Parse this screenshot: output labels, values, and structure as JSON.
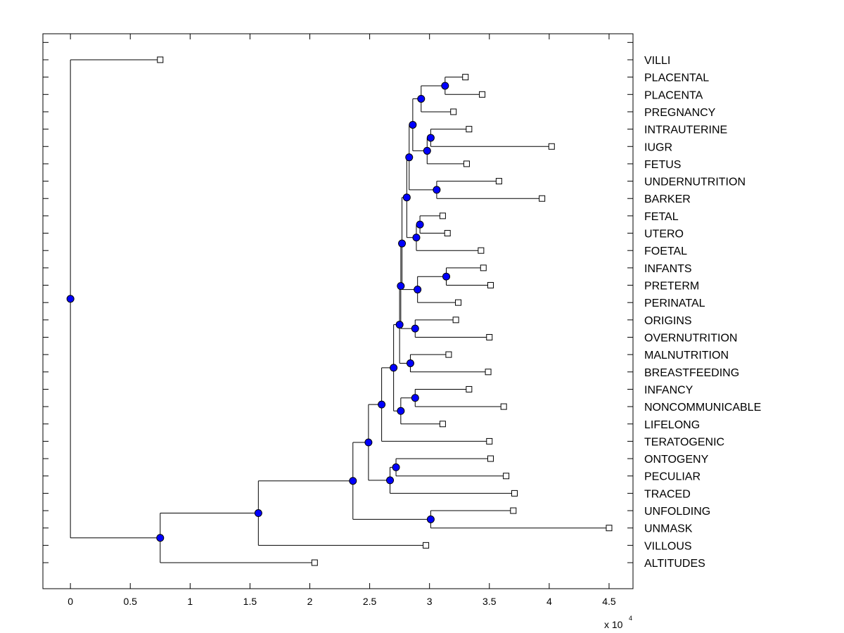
{
  "chart_data": {
    "type": "dendrogram",
    "orientation": "horizontal-tree",
    "x_axis": {
      "ticks": [
        0,
        5000,
        10000,
        15000,
        20000,
        25000,
        30000,
        35000,
        40000,
        45000
      ],
      "tick_labels": [
        "0",
        "0.5",
        "1",
        "1.5",
        "2",
        "2.5",
        "3",
        "3.5",
        "4",
        "4.5"
      ],
      "multiplier_base": "x 10",
      "multiplier_exponent": "4",
      "xlim": [
        -2300,
        47000
      ]
    },
    "y_axis": {
      "ylim": [
        -0.5,
        31.5
      ],
      "tick_count": 31
    },
    "colors": {
      "node_fill": "#0000ff",
      "leaf_fill": "#ffffff",
      "line": "#000000"
    },
    "leaves": [
      {
        "label": "VILLI",
        "x": 7500
      },
      {
        "label": "PLACENTAL",
        "x": 33000
      },
      {
        "label": "PLACENTA",
        "x": 34400
      },
      {
        "label": "PREGNANCY",
        "x": 32000
      },
      {
        "label": "INTRAUTERINE",
        "x": 33300
      },
      {
        "label": "IUGR",
        "x": 40200
      },
      {
        "label": "FETUS",
        "x": 33100
      },
      {
        "label": "UNDERNUTRITION",
        "x": 35800
      },
      {
        "label": "BARKER",
        "x": 39400
      },
      {
        "label": "FETAL",
        "x": 31100
      },
      {
        "label": "UTERO",
        "x": 31500
      },
      {
        "label": "FOETAL",
        "x": 34300
      },
      {
        "label": "INFANTS",
        "x": 34500
      },
      {
        "label": "PRETERM",
        "x": 35100
      },
      {
        "label": "PERINATAL",
        "x": 32400
      },
      {
        "label": "ORIGINS",
        "x": 32200
      },
      {
        "label": "OVERNUTRITION",
        "x": 35000
      },
      {
        "label": "MALNUTRITION",
        "x": 31600
      },
      {
        "label": "BREASTFEEDING",
        "x": 34900
      },
      {
        "label": "INFANCY",
        "x": 33300
      },
      {
        "label": "NONCOMMUNICABLE",
        "x": 36200
      },
      {
        "label": "LIFELONG",
        "x": 31100
      },
      {
        "label": "TERATOGENIC",
        "x": 35000
      },
      {
        "label": "ONTOGENY",
        "x": 35100
      },
      {
        "label": "PECULIAR",
        "x": 36400
      },
      {
        "label": "TRACED",
        "x": 37100
      },
      {
        "label": "UNFOLDING",
        "x": 37000
      },
      {
        "label": "UNMASK",
        "x": 45000
      },
      {
        "label": "VILLOUS",
        "x": 29700
      },
      {
        "label": "ALTITUDES",
        "x": 20400
      }
    ],
    "nodes": [
      {
        "id": "root",
        "x": 0,
        "children": [
          "VILLI",
          "n_alt"
        ]
      },
      {
        "id": "n_alt",
        "x": 7500,
        "children": [
          "n_vil",
          "ALTITUDES"
        ]
      },
      {
        "id": "n_vil",
        "x": 15700,
        "children": [
          "n_main",
          "VILLOUS"
        ]
      },
      {
        "id": "n_main",
        "x": 23600,
        "children": [
          "n_ter",
          "n_unf"
        ]
      },
      {
        "id": "n_unf",
        "x": 30100,
        "children": [
          "UNFOLDING",
          "UNMASK"
        ]
      },
      {
        "id": "n_ter",
        "x": 24900,
        "children": [
          "n_big",
          "n_tr"
        ]
      },
      {
        "id": "n_tr",
        "x": 26700,
        "children": [
          "n_ont",
          "TRACED"
        ]
      },
      {
        "id": "n_ont",
        "x": 27200,
        "children": [
          "ONTOGENY",
          "PECULIAR"
        ]
      },
      {
        "id": "n_big",
        "x": 26000,
        "children": [
          "n_lif",
          "TERATOGENIC"
        ]
      },
      {
        "id": "n_lif",
        "x": 27000,
        "children": [
          "n_mal",
          "n_inf2"
        ]
      },
      {
        "id": "n_inf2",
        "x": 27600,
        "children": [
          "n_inf",
          "LIFELONG"
        ]
      },
      {
        "id": "n_inf",
        "x": 28800,
        "children": [
          "INFANCY",
          "NONCOMMUNICABLE"
        ]
      },
      {
        "id": "n_mal",
        "x": 27500,
        "children": [
          "n_ori",
          "n_mb"
        ]
      },
      {
        "id": "n_mb",
        "x": 28400,
        "children": [
          "MALNUTRITION",
          "BREASTFEEDING"
        ]
      },
      {
        "id": "n_ori",
        "x": 27600,
        "children": [
          "n_pre",
          "n_ov"
        ]
      },
      {
        "id": "n_ov",
        "x": 28800,
        "children": [
          "ORIGINS",
          "OVERNUTRITION"
        ]
      },
      {
        "id": "n_pre",
        "x": 27700,
        "children": [
          "n_foe",
          "n_per"
        ]
      },
      {
        "id": "n_per",
        "x": 29000,
        "children": [
          "n_ip",
          "PERINATAL"
        ]
      },
      {
        "id": "n_ip",
        "x": 31400,
        "children": [
          "INFANTS",
          "PRETERM"
        ]
      },
      {
        "id": "n_foe",
        "x": 28100,
        "children": [
          "n_bar",
          "n_fu"
        ]
      },
      {
        "id": "n_fu",
        "x": 28900,
        "children": [
          "n_fetal",
          "FOETAL"
        ]
      },
      {
        "id": "n_fetal",
        "x": 29200,
        "children": [
          "FETAL",
          "UTERO"
        ]
      },
      {
        "id": "n_bar",
        "x": 28300,
        "children": [
          "n_preg",
          "n_ub"
        ]
      },
      {
        "id": "n_ub",
        "x": 30600,
        "children": [
          "UNDERNUTRITION",
          "BARKER"
        ]
      },
      {
        "id": "n_preg",
        "x": 28600,
        "children": [
          "n_pla",
          "n_fet"
        ]
      },
      {
        "id": "n_fet",
        "x": 29800,
        "children": [
          "n_iu",
          "FETUS"
        ]
      },
      {
        "id": "n_iu",
        "x": 30100,
        "children": [
          "INTRAUTERINE",
          "IUGR"
        ]
      },
      {
        "id": "n_pla",
        "x": 29300,
        "children": [
          "n_pp",
          "PREGNANCY"
        ]
      },
      {
        "id": "n_pp",
        "x": 31300,
        "children": [
          "PLACENTAL",
          "PLACENTA"
        ]
      }
    ]
  }
}
